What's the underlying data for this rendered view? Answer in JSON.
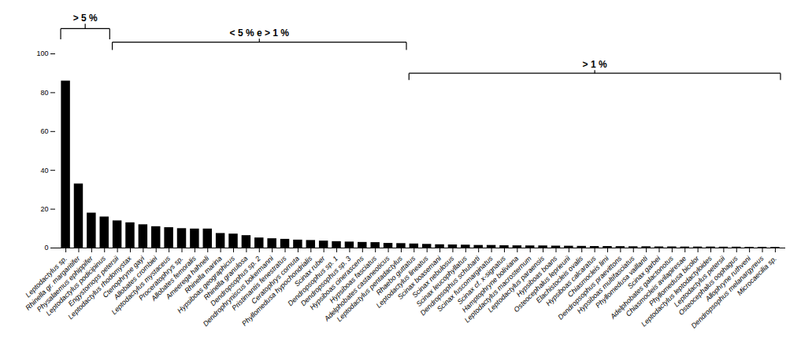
{
  "chart_data": {
    "type": "bar",
    "categories": [
      "Leptodactylus sp.",
      "Rhinella gr. margaritifer",
      "Physalaemus ephippifer",
      "Leptodactylus podicipinus",
      "Engystomops petersii",
      "Leptodactylus rhodomystax",
      "Ctenophryne gayi",
      "Allobates crombiei",
      "Leptodactylus mystaceus",
      "Proceratophrys sp.",
      "Allobates femoralis",
      "Ameerega hahneli",
      "Rhinella marina",
      "Hypsiboas geographicus",
      "Rhinella granulosa",
      "Dendropsophus sp. 2",
      "Dendrophryniscus bokermanni",
      "Pristimantis fenestratus",
      "Ceratophrys cornuta",
      "Phyllomedusa hypochondrialis",
      "Scinax ruber",
      "Dendropsophus sp. 1",
      "Dendropsophus sp. 3",
      "Hypsiboas cinerascens",
      "Hypsiboas fasciatus",
      "Adelphobates castaneoticus",
      "Leptodactylus pentadactylus",
      "Rhaebo guttatus",
      "Leptodactylus lineatus",
      "Scinax boasemani",
      "Scinax nebulosus",
      "Scinax leucophyllatus",
      "Dendropsophus schubarti",
      "Scinax fuscomarginatus",
      "Scinax cf. x-signatus",
      "Hamptophryne boliviana",
      "Leptodactylus macrosternum",
      "Leptodactylus paraensis",
      "Hypsiboas boans",
      "Osteocephalus leprieurii",
      "Elachistocleis ovalis",
      "Hypsiboas calcaratus",
      "Chiasmocleis limi",
      "Dendropsophus praevittons",
      "Hypsiboas multifasciatus",
      "Phyllomedusa vaillanti",
      "Scinax garbei",
      "Adelphobates galactonotus",
      "Chiasmocleis avilapiresae",
      "Phyllomedusa bicolor",
      "Leptodactylus leptodactyloides",
      "Leptodactylus petersii",
      "Osteocephalus oophagus",
      "Allophryne ruthveni",
      "Dendropsophus melanargyreus",
      "Microcaecilia sp."
    ],
    "values": [
      86,
      33,
      18,
      16,
      14,
      13,
      12,
      11,
      10.5,
      10,
      9.8,
      9.8,
      7.5,
      7.2,
      6.4,
      5.2,
      4.8,
      4.5,
      4.1,
      3.9,
      3.6,
      3.3,
      3.1,
      2.9,
      2.8,
      2.4,
      2.3,
      2.1,
      1.9,
      1.7,
      1.6,
      1.5,
      1.35,
      1.35,
      1.2,
      1.15,
      1.1,
      1.1,
      1.0,
      0.95,
      0.88,
      0.8,
      0.8,
      0.75,
      0.68,
      0.68,
      0.6,
      0.6,
      0.54,
      0.54,
      0.54,
      0.47,
      0.47,
      0.4,
      0.4,
      0.34
    ],
    "color": "#000000",
    "ylim": [
      0,
      100
    ],
    "yticks": [
      0,
      20,
      40,
      60,
      80,
      100
    ],
    "grid": false,
    "annotations": [
      {
        "text": "> 5 %",
        "from": "Leptodactylus sp.",
        "to": "Leptodactylus podicipinus"
      },
      {
        "text": "< 5 % e > 1 %",
        "from": "Engystomops petersii",
        "to": "Leptodactylus pentadactylus"
      },
      {
        "text": "> 1 %",
        "from": "Rhaebo guttatus",
        "to": "Microcaecilia sp."
      }
    ]
  }
}
